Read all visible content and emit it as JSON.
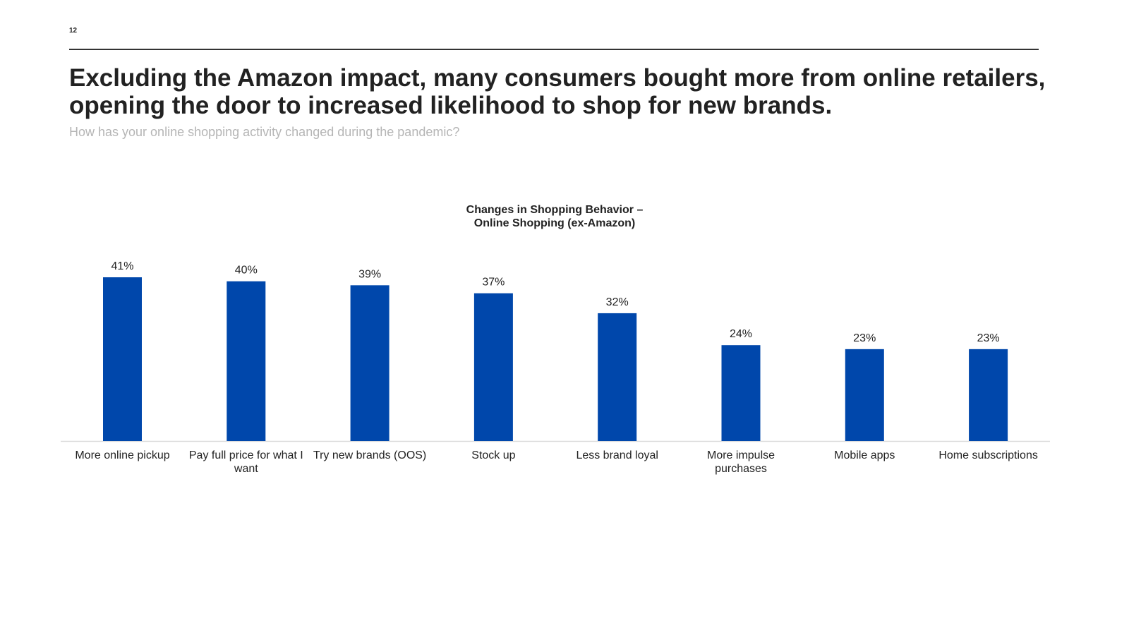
{
  "page": {
    "number": "12",
    "headline": "Excluding the Amazon impact, many consumers bought more from online retailers, opening the door to increased likelihood to shop for new brands.",
    "subtitle": "How has your online shopping activity changed during the pandemic?"
  },
  "colors": {
    "bar": "#0047AB",
    "axis": "#d9d9d9"
  },
  "chart_data": {
    "type": "bar",
    "title": "Changes in Shopping Behavior – Online Shopping (ex-Amazon)",
    "title_lines": [
      "Changes in Shopping Behavior –",
      "Online Shopping (ex-Amazon)"
    ],
    "categories": [
      [
        "More online pickup"
      ],
      [
        "Pay full price for what I",
        "want"
      ],
      [
        "Try new brands (OOS)"
      ],
      [
        "Stock up"
      ],
      [
        "Less brand loyal"
      ],
      [
        "More impulse",
        "purchases"
      ],
      [
        "Mobile apps"
      ],
      [
        "Home subscriptions"
      ]
    ],
    "values": [
      41,
      40,
      39,
      37,
      32,
      24,
      23,
      23
    ],
    "value_labels": [
      "41%",
      "40%",
      "39%",
      "37%",
      "32%",
      "24%",
      "23%",
      "23%"
    ],
    "unit": "%",
    "xlabel": "",
    "ylabel": "",
    "ylim": [
      0,
      45
    ],
    "grid": false,
    "legend": "none"
  }
}
